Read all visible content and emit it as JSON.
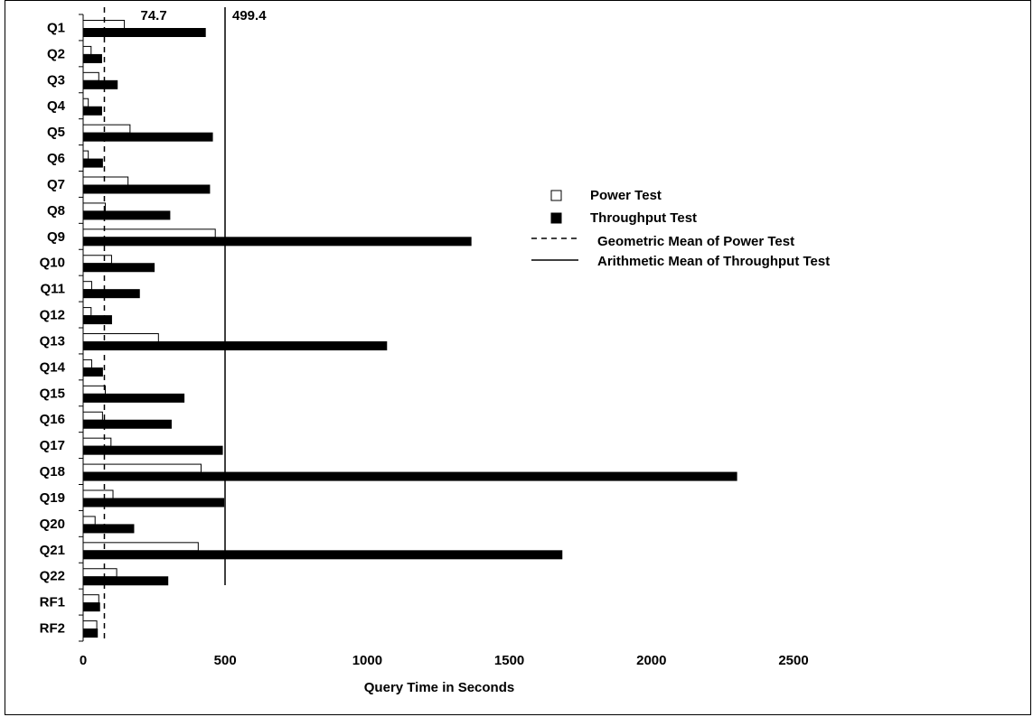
{
  "chart_data": {
    "type": "bar",
    "orientation": "horizontal",
    "categories": [
      "Q1",
      "Q2",
      "Q3",
      "Q4",
      "Q5",
      "Q6",
      "Q7",
      "Q8",
      "Q9",
      "Q10",
      "Q11",
      "Q12",
      "Q13",
      "Q14",
      "Q15",
      "Q16",
      "Q17",
      "Q18",
      "Q19",
      "Q20",
      "Q21",
      "Q22",
      "RF1",
      "RF2"
    ],
    "series": [
      {
        "name": "Power Test",
        "color": "#ffffff",
        "values": [
          145,
          28,
          55,
          18,
          165,
          18,
          158,
          78,
          465,
          100,
          30,
          28,
          265,
          30,
          78,
          68,
          98,
          415,
          105,
          42,
          405,
          118,
          55,
          48
        ]
      },
      {
        "name": "Throughput Test",
        "color": "#000000",
        "values": [
          430,
          65,
          120,
          65,
          455,
          68,
          445,
          305,
          1365,
          250,
          198,
          100,
          1068,
          68,
          355,
          310,
          490,
          2300,
          495,
          178,
          1685,
          298,
          58,
          50
        ]
      }
    ],
    "reference_lines": [
      {
        "name": "Geometric Mean of Power Test",
        "value": 74.7,
        "label": "74.7",
        "style": "dashed"
      },
      {
        "name": "Arithmetic Mean of Throughput Test",
        "value": 499.4,
        "label": "499.4",
        "style": "solid"
      }
    ],
    "xlabel": "Query Time in Seconds",
    "xlim": [
      0,
      2500
    ],
    "xticks": [
      "0",
      "500",
      "1000",
      "1500",
      "2000",
      "2500"
    ],
    "grid": false,
    "legend_position": "right"
  }
}
